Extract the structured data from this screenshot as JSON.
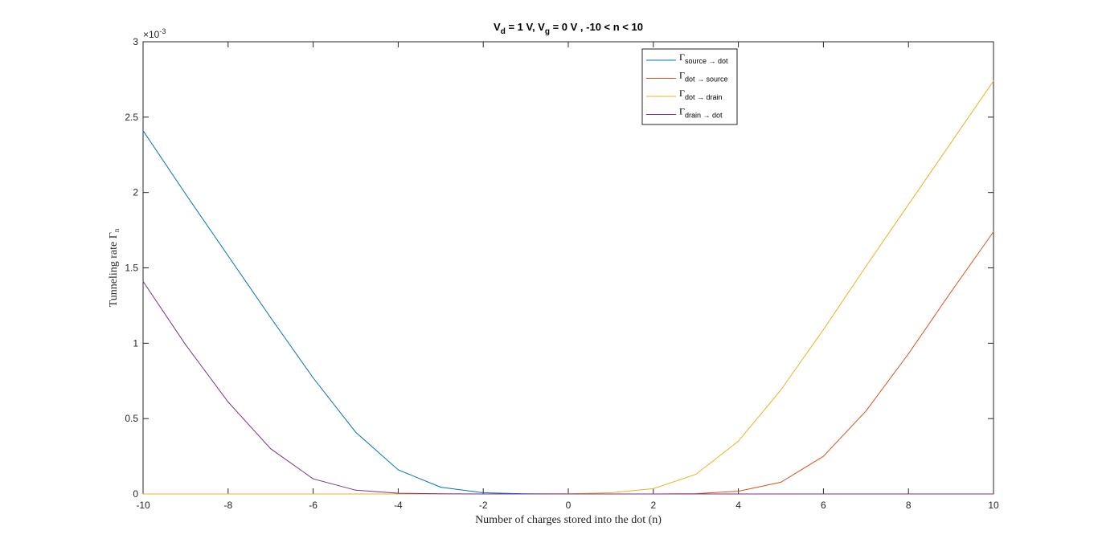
{
  "chart_data": {
    "type": "line",
    "title_parts": [
      "V",
      "d",
      " = 1 V, V",
      "g",
      " = 0 V , -10 < n < 10"
    ],
    "xlabel": "Number of charges stored into the dot (n)",
    "ylabel": "Tunneling rate Γ",
    "ylabel_sub": "n",
    "exponent_label": "×10",
    "exponent_power": "-3",
    "xlim": [
      -10,
      10
    ],
    "ylim": [
      0,
      0.003
    ],
    "x_ticks": [
      -10,
      -8,
      -6,
      -4,
      -2,
      0,
      2,
      4,
      6,
      8,
      10
    ],
    "y_ticks": [
      0,
      0.0005,
      0.001,
      0.0015,
      0.002,
      0.0025,
      0.003
    ],
    "y_tick_labels": [
      "0",
      "0.5",
      "1",
      "1.5",
      "2",
      "2.5",
      "3"
    ],
    "x": [
      -10,
      -9,
      -8,
      -7,
      -6,
      -5,
      -4,
      -3,
      -2,
      -1,
      0,
      1,
      2,
      3,
      4,
      5,
      6,
      7,
      8,
      9,
      10
    ],
    "grid": false,
    "legend_position": "top-center",
    "series": [
      {
        "name_main": "Γ",
        "name_sub": "source → dot",
        "color": "#0072BD",
        "values": [
          0.00241,
          0.00199,
          0.00158,
          0.00117,
          0.00077,
          0.00041,
          0.00016,
          4.5e-05,
          8e-06,
          1e-06,
          0,
          0,
          0,
          0,
          0,
          0,
          0,
          0,
          0,
          0,
          0
        ]
      },
      {
        "name_main": "Γ",
        "name_sub": "dot → source",
        "color": "#D95319",
        "values": [
          0,
          0,
          0,
          0,
          0,
          0,
          0,
          0,
          0,
          0,
          0,
          0,
          0,
          2e-06,
          1.8e-05,
          7.8e-05,
          0.00025,
          0.00055,
          0.00093,
          0.00134,
          0.00174
        ]
      },
      {
        "name_main": "Γ",
        "name_sub": "dot → drain",
        "color": "#EDB120",
        "values": [
          0,
          0,
          0,
          0,
          0,
          0,
          0,
          0,
          0,
          0,
          1e-06,
          8e-06,
          3.5e-05,
          0.00013,
          0.00035,
          0.00069,
          0.00109,
          0.00151,
          0.00192,
          0.00233,
          0.00274
        ]
      },
      {
        "name_main": "Γ",
        "name_sub": "drain → dot",
        "color": "#7E2F8E",
        "values": [
          0.00141,
          0.00099,
          0.00061,
          0.0003,
          0.0001,
          2.5e-05,
          5e-06,
          1e-06,
          0,
          0,
          0,
          0,
          0,
          0,
          0,
          0,
          0,
          0,
          0,
          0,
          0
        ]
      }
    ]
  }
}
